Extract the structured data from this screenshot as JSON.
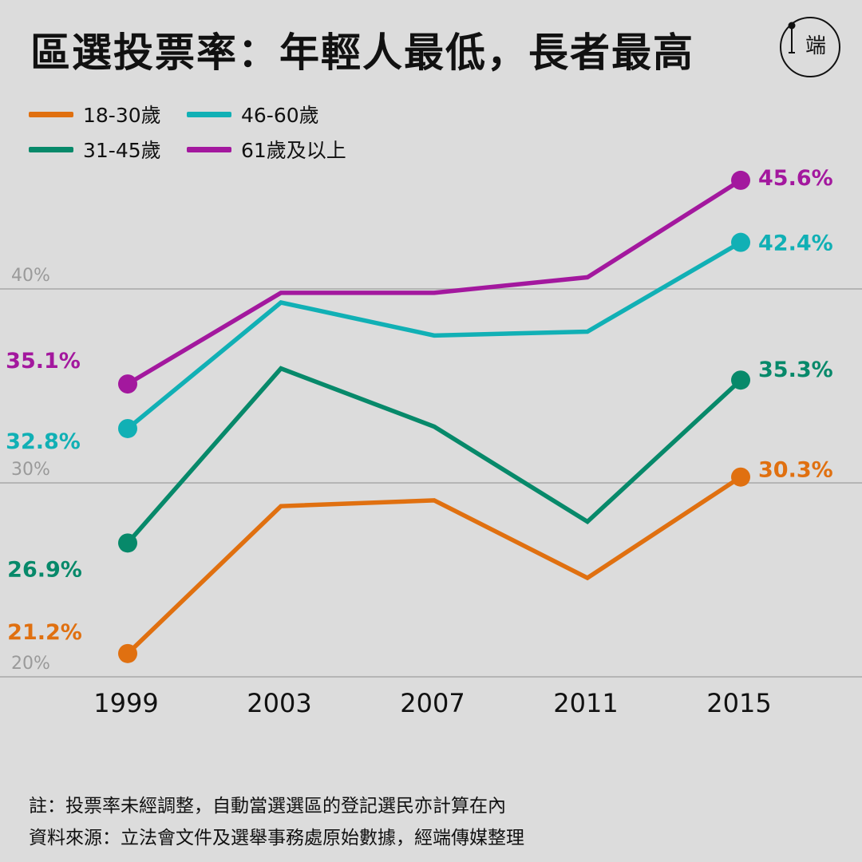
{
  "title": "區選投票率：年輕人最低，長者最高",
  "logo": {
    "icon": "logo-icon",
    "glyph": "端"
  },
  "note": "註：投票率未經調整，自動當選選區的登記選民亦計算在內",
  "source": "資料來源：立法會文件及選舉事務處原始數據，經端傳媒整理",
  "chart_data": {
    "type": "line",
    "title": "區選投票率：年輕人最低，長者最高",
    "xlabel": "",
    "ylabel": "",
    "x": [
      "1999",
      "2003",
      "2007",
      "2011",
      "2015"
    ],
    "ylim": [
      20,
      50
    ],
    "yticks": [
      {
        "value": 40,
        "label": "40%"
      },
      {
        "value": 30,
        "label": "30%"
      },
      {
        "value": 20,
        "label": "20%"
      }
    ],
    "grid": true,
    "legend": "top-left",
    "series": [
      {
        "name": "18-30歲",
        "color": "#e07010",
        "values": [
          21.2,
          28.8,
          29.1,
          25.1,
          30.3
        ],
        "start_label": "21.2%",
        "end_label": "30.3%"
      },
      {
        "name": "31-45歲",
        "color": "#07896a",
        "values": [
          26.9,
          35.9,
          32.9,
          28.0,
          35.3
        ],
        "start_label": "26.9%",
        "end_label": "35.3%"
      },
      {
        "name": "46-60歲",
        "color": "#11b0b5",
        "values": [
          32.8,
          39.3,
          37.6,
          37.8,
          42.4
        ],
        "start_label": "32.8%",
        "end_label": "42.4%"
      },
      {
        "name": "61歲及以上",
        "color": "#a3189e",
        "values": [
          35.1,
          39.8,
          39.8,
          40.6,
          45.6
        ],
        "start_label": "35.1%",
        "end_label": "45.6%"
      }
    ]
  }
}
